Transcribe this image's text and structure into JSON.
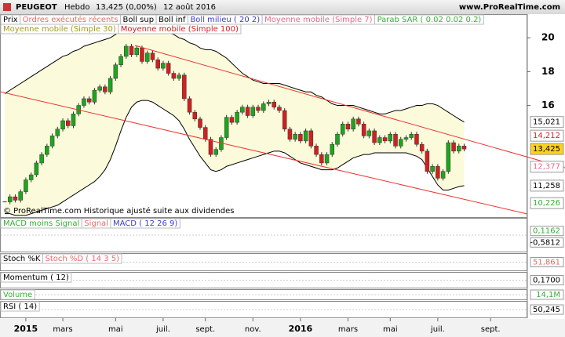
{
  "chart_data": {
    "type": "candlestick",
    "title": "PEUGEOT",
    "period": "Hebdo",
    "quote": "13,425 (0,00%)",
    "date": "12 août 2016",
    "site": "www.ProRealTime.com",
    "note": "© ProRealTime.com Historique ajusté suite aux dividendes",
    "up_color": "#1ea51e",
    "down_color": "#d21f1f",
    "band_fill": "#fbfbdc",
    "categories": [
      null,
      null,
      null,
      null,
      "2015",
      null,
      null,
      null,
      null,
      null,
      null,
      "mars",
      null,
      null,
      null,
      null,
      null,
      null,
      null,
      null,
      null,
      "mai",
      null,
      null,
      null,
      null,
      null,
      null,
      null,
      null,
      "juil.",
      null,
      null,
      null,
      null,
      null,
      null,
      null,
      "sept.",
      null,
      null,
      null,
      null,
      null,
      null,
      null,
      null,
      "nov.",
      null,
      null,
      null,
      null,
      null,
      null,
      null,
      null,
      "2016",
      null,
      null,
      null,
      null,
      null,
      null,
      null,
      null,
      "mars",
      null,
      null,
      null,
      null,
      null,
      null,
      null,
      "mai",
      null,
      null,
      null,
      null,
      null,
      null,
      null,
      null,
      "juil.",
      null,
      null,
      null,
      null,
      null,
      null,
      null,
      null,
      null,
      "sept."
    ],
    "series": [
      {
        "name": "Prix",
        "values": [
          10.3,
          10.6,
          10.4,
          10.9,
          11.6,
          11.9,
          12.6,
          13.1,
          13.6,
          14.2,
          14.6,
          15.1,
          14.8,
          15.5,
          16.0,
          16.4,
          16.2,
          16.9,
          17.1,
          16.8,
          17.6,
          18.4,
          18.9,
          19.5,
          19.0,
          19.4,
          18.6,
          19.1,
          18.7,
          18.2,
          18.5,
          17.9,
          17.6,
          17.8,
          16.4,
          15.6,
          15.2,
          14.7,
          14.0,
          13.1,
          13.4,
          14.1,
          15.3,
          15.0,
          15.6,
          15.9,
          15.4,
          15.9,
          15.7,
          16.1,
          16.2,
          15.9,
          15.7,
          14.6,
          14.0,
          14.3,
          13.9,
          14.5,
          13.6,
          13.1,
          12.6,
          13.1,
          13.7,
          14.3,
          14.9,
          14.6,
          15.2,
          14.9,
          14.2,
          14.5,
          13.8,
          14.1,
          13.9,
          14.3,
          13.6,
          14.0,
          14.1,
          14.3,
          13.7,
          13.3,
          12.1,
          12.4,
          11.7,
          12.1,
          13.8,
          13.3,
          13.6,
          13.425,
          null,
          null,
          null,
          null,
          null
        ]
      },
      {
        "name": "Boll sup",
        "color": "#000000",
        "values": [
          16.7,
          16.9,
          17.1,
          17.3,
          17.5,
          17.7,
          17.9,
          18.1,
          18.3,
          18.5,
          18.7,
          18.9,
          19.0,
          19.2,
          19.3,
          19.5,
          19.6,
          19.7,
          19.8,
          19.9,
          20.0,
          20.2,
          20.4,
          20.6,
          20.7,
          20.8,
          20.8,
          20.8,
          20.7,
          20.6,
          20.5,
          20.3,
          20.2,
          20.0,
          19.9,
          19.7,
          19.6,
          19.4,
          19.3,
          19.3,
          19.2,
          19.0,
          18.8,
          18.5,
          18.2,
          17.9,
          17.7,
          17.5,
          17.4,
          17.3,
          17.3,
          17.3,
          17.3,
          17.2,
          17.1,
          17.0,
          16.9,
          16.8,
          16.8,
          16.6,
          16.5,
          16.3,
          16.1,
          16.0,
          16.0,
          16.0,
          16.0,
          15.9,
          15.8,
          15.7,
          15.6,
          15.5,
          15.5,
          15.6,
          15.7,
          15.7,
          15.8,
          15.9,
          16.0,
          16.0,
          16.1,
          16.1,
          16.0,
          15.8,
          15.6,
          15.4,
          15.2,
          15.021,
          null,
          null,
          null,
          null,
          null
        ]
      },
      {
        "name": "Boll inf",
        "color": "#000000",
        "values": [
          9.6,
          9.6,
          9.5,
          9.5,
          9.5,
          9.6,
          9.7,
          9.8,
          9.9,
          10.0,
          10.1,
          10.3,
          10.5,
          10.7,
          10.9,
          11.1,
          11.3,
          11.5,
          11.8,
          12.2,
          12.8,
          13.6,
          14.5,
          15.3,
          15.9,
          16.2,
          16.3,
          16.3,
          16.2,
          16.0,
          15.8,
          15.6,
          15.4,
          15.1,
          14.6,
          14.0,
          13.5,
          13.0,
          12.6,
          12.2,
          12.1,
          12.2,
          12.4,
          12.5,
          12.6,
          12.7,
          12.8,
          12.9,
          13.0,
          13.1,
          13.2,
          13.3,
          13.3,
          13.2,
          13.0,
          12.8,
          12.6,
          12.5,
          12.4,
          12.3,
          12.2,
          12.2,
          12.2,
          12.3,
          12.5,
          12.7,
          12.9,
          13.0,
          13.1,
          13.1,
          13.2,
          13.2,
          13.2,
          13.2,
          13.2,
          13.2,
          13.2,
          13.1,
          13.0,
          12.8,
          12.3,
          11.8,
          11.3,
          11.0,
          11.0,
          11.1,
          11.2,
          11.258,
          null,
          null,
          null,
          null,
          null
        ]
      }
    ],
    "overlays": [
      {
        "name": "Ordres exécutés récents",
        "color": "#e86a6a"
      },
      {
        "name": "Boll milieu ( 20 2)",
        "color": "#3a3acf"
      },
      {
        "name": "Moyenne mobile (Simple 7)",
        "color": "#e86a8a"
      },
      {
        "name": "Parab SAR ( 0.02 0.02 0.2)",
        "color": "#35b035"
      },
      {
        "name": "Moyenne mobile (Simple 30)",
        "color": "#a09a20"
      },
      {
        "name": "Moyenne mobile (Simple 100)",
        "color": "#d21f1f"
      }
    ],
    "ylim": [
      9.4,
      21.4
    ],
    "yticks": [
      16,
      18,
      20
    ],
    "price_labels": [
      {
        "value": 15.021,
        "label": "15,021",
        "color": "#000000",
        "background": "#ffffff"
      },
      {
        "value": 14.212,
        "label": "14,212",
        "color": "#d21f1f",
        "background": "#ffffff"
      },
      {
        "value": 13.425,
        "label": "13,425",
        "color": "#000000",
        "background": "#ffd21a"
      },
      {
        "value": 12.377,
        "label": "12,377",
        "color": "#e86a8a",
        "background": "#ffffff"
      },
      {
        "value": 11.258,
        "label": "11,258",
        "color": "#000000",
        "background": "#ffffff"
      },
      {
        "value": 10.226,
        "label": "10,226",
        "color": "#35b035",
        "background": "#ffffff"
      }
    ],
    "panels": [
      {
        "labels": [
          {
            "text": "MACD moins Signal",
            "color": "#35b035"
          },
          {
            "text": "Signal",
            "color": "#e86a6a"
          },
          {
            "text": "MACD ( 12 26 9)",
            "color": "#3a3acf"
          }
        ],
        "readouts": [
          {
            "text": "0,1162",
            "color": "#35b035"
          },
          {
            "text": "-0,5812",
            "color": "#000000"
          }
        ]
      },
      {
        "labels": [
          {
            "text": "Stoch %K",
            "color": "#000000"
          },
          {
            "text": "Stoch %D ( 14 3 5)",
            "color": "#e86a6a"
          }
        ],
        "readouts": [
          {
            "text": "51,861",
            "color": "#e86a6a"
          }
        ]
      },
      {
        "labels": [
          {
            "text": "Momentum ( 12)",
            "color": "#000000"
          }
        ],
        "readouts": [
          {
            "text": "0,1700",
            "color": "#000000"
          }
        ]
      },
      {
        "labels": [
          {
            "text": "Volume",
            "color": "#35b035"
          }
        ],
        "readouts": [
          {
            "text": "14,1M",
            "color": "#35b035"
          }
        ]
      },
      {
        "labels": [
          {
            "text": "RSI ( 14)",
            "color": "#000000"
          }
        ],
        "readouts": [
          {
            "text": "50,245",
            "color": "#000000"
          }
        ]
      }
    ]
  }
}
